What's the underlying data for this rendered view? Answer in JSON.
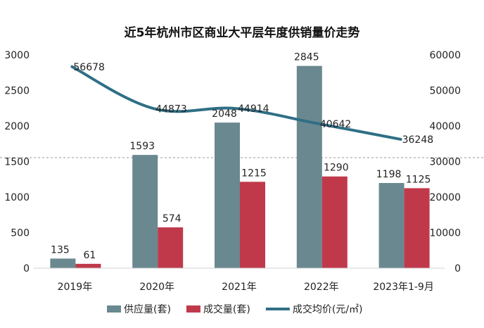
{
  "chart_data": {
    "type": "bar",
    "title": "近5年杭州市区商业大平层年度供销量价走势",
    "categories": [
      "2019年",
      "2020年",
      "2021年",
      "2022年",
      "2023年1-9月"
    ],
    "series": [
      {
        "name": "供应量(套)",
        "kind": "bar",
        "axis": "left",
        "color": "#6a8890",
        "values": [
          135,
          1593,
          2048,
          2845,
          1198
        ]
      },
      {
        "name": "成交量(套)",
        "kind": "bar",
        "axis": "left",
        "color": "#c0394b",
        "values": [
          61,
          574,
          1215,
          1290,
          1125
        ]
      },
      {
        "name": "成交均价(元/㎡)",
        "kind": "line",
        "axis": "right",
        "color": "#2f6f86",
        "values": [
          56678,
          44873,
          44914,
          40642,
          36248
        ]
      }
    ],
    "y_left": {
      "min": 0,
      "max": 3000,
      "ticks": [
        0,
        500,
        1000,
        1500,
        2000,
        2500,
        3000
      ]
    },
    "y_right": {
      "min": 0,
      "max": 60000,
      "ticks": [
        0,
        10000,
        20000,
        30000,
        40000,
        50000,
        60000
      ]
    },
    "legend_position": "bottom",
    "grid": false
  }
}
